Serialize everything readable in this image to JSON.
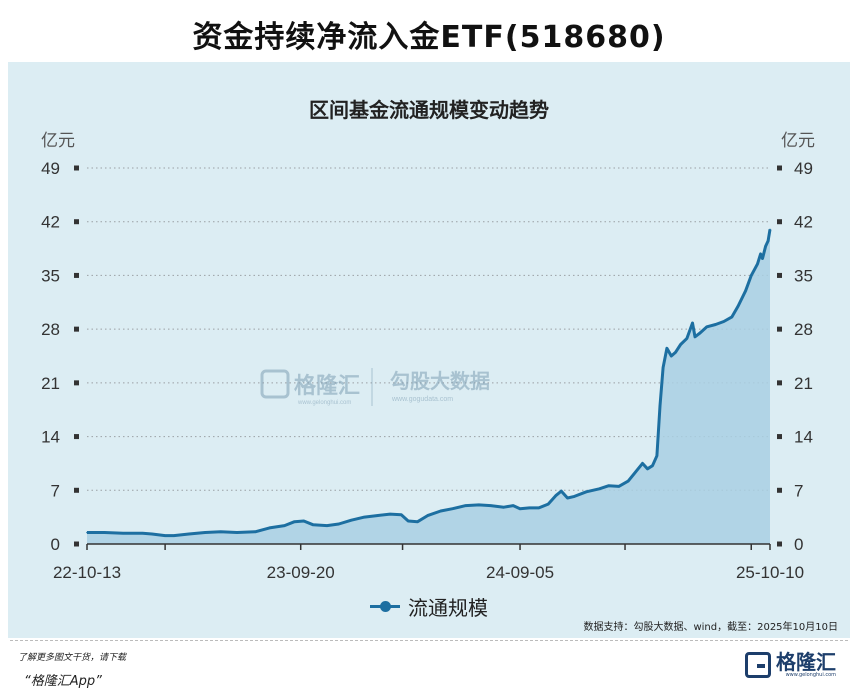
{
  "header": {
    "title": "资金持续净流入金ETF(518680)"
  },
  "watermark": {
    "brand": "格隆汇",
    "brand_url": "www.gelonghui.com",
    "sub_brand": "勾股大数据",
    "sub_url": "www.gogudata.com"
  },
  "chart_data": {
    "type": "area",
    "title": "区间基金流通规模变动趋势",
    "ylabel_left": "亿元",
    "ylabel_right": "亿元",
    "yticks": [
      0,
      7,
      14,
      21,
      28,
      35,
      42,
      49
    ],
    "ylim": [
      0,
      49
    ],
    "xlim": [
      "2022-10-13",
      "2025-10-10"
    ],
    "xticks": [
      {
        "date": "2022-10-13",
        "label": "22-10-13"
      },
      {
        "date": "2023-09-20",
        "label": "23-09-20"
      },
      {
        "date": "2024-09-05",
        "label": "24-09-05"
      },
      {
        "date": "2025-10-10",
        "label": "25-10-10"
      }
    ],
    "minor_xticks": [
      "2023-02-15",
      "2024-03-01",
      "2025-02-20",
      "2025-09-10"
    ],
    "grid": true,
    "legend_position": "bottom",
    "colors": {
      "line": "#1d6fa1",
      "area": "#a9cfe3",
      "background": "#dcedf3"
    },
    "series": [
      {
        "name": "流通规模",
        "points": [
          [
            "2022-10-13",
            1.5
          ],
          [
            "2022-11-10",
            1.5
          ],
          [
            "2022-12-10",
            1.4
          ],
          [
            "2023-01-10",
            1.4
          ],
          [
            "2023-01-25",
            1.3
          ],
          [
            "2023-02-15",
            1.1
          ],
          [
            "2023-03-01",
            1.1
          ],
          [
            "2023-03-25",
            1.3
          ],
          [
            "2023-04-20",
            1.5
          ],
          [
            "2023-05-15",
            1.6
          ],
          [
            "2023-06-10",
            1.5
          ],
          [
            "2023-07-10",
            1.6
          ],
          [
            "2023-08-01",
            2.1
          ],
          [
            "2023-08-25",
            2.4
          ],
          [
            "2023-09-10",
            2.9
          ],
          [
            "2023-09-25",
            3.0
          ],
          [
            "2023-10-10",
            2.5
          ],
          [
            "2023-11-01",
            2.4
          ],
          [
            "2023-11-20",
            2.6
          ],
          [
            "2023-12-10",
            3.1
          ],
          [
            "2023-12-31",
            3.5
          ],
          [
            "2024-01-20",
            3.7
          ],
          [
            "2024-02-10",
            3.9
          ],
          [
            "2024-02-28",
            3.8
          ],
          [
            "2024-03-10",
            3.0
          ],
          [
            "2024-03-25",
            2.9
          ],
          [
            "2024-04-10",
            3.7
          ],
          [
            "2024-05-01",
            4.3
          ],
          [
            "2024-05-20",
            4.6
          ],
          [
            "2024-06-10",
            5.0
          ],
          [
            "2024-07-01",
            5.1
          ],
          [
            "2024-07-20",
            5.0
          ],
          [
            "2024-08-10",
            4.8
          ],
          [
            "2024-08-25",
            5.0
          ],
          [
            "2024-09-05",
            4.6
          ],
          [
            "2024-09-20",
            4.7
          ],
          [
            "2024-10-05",
            4.7
          ],
          [
            "2024-10-20",
            5.2
          ],
          [
            "2024-11-01",
            6.3
          ],
          [
            "2024-11-10",
            6.9
          ],
          [
            "2024-11-20",
            6.0
          ],
          [
            "2024-12-01",
            6.2
          ],
          [
            "2024-12-20",
            6.8
          ],
          [
            "2025-01-10",
            7.2
          ],
          [
            "2025-01-25",
            7.6
          ],
          [
            "2025-02-10",
            7.5
          ],
          [
            "2025-02-25",
            8.2
          ],
          [
            "2025-03-10",
            9.5
          ],
          [
            "2025-03-20",
            10.5
          ],
          [
            "2025-03-28",
            9.8
          ],
          [
            "2025-04-05",
            10.2
          ],
          [
            "2025-04-12",
            11.5
          ],
          [
            "2025-04-17",
            18.0
          ],
          [
            "2025-04-22",
            23.0
          ],
          [
            "2025-04-28",
            25.5
          ],
          [
            "2025-05-05",
            24.5
          ],
          [
            "2025-05-12",
            25.0
          ],
          [
            "2025-05-20",
            26.0
          ],
          [
            "2025-05-30",
            26.8
          ],
          [
            "2025-06-08",
            28.8
          ],
          [
            "2025-06-12",
            27.0
          ],
          [
            "2025-06-20",
            27.5
          ],
          [
            "2025-07-01",
            28.3
          ],
          [
            "2025-07-15",
            28.6
          ],
          [
            "2025-07-28",
            29.0
          ],
          [
            "2025-08-10",
            29.6
          ],
          [
            "2025-08-20",
            31.0
          ],
          [
            "2025-09-01",
            33.0
          ],
          [
            "2025-09-10",
            35.0
          ],
          [
            "2025-09-20",
            36.5
          ],
          [
            "2025-09-25",
            37.8
          ],
          [
            "2025-09-28",
            37.2
          ],
          [
            "2025-10-03",
            38.8
          ],
          [
            "2025-10-07",
            39.5
          ],
          [
            "2025-10-10",
            41.0
          ]
        ]
      }
    ],
    "source": "数据支持：勾股大数据、wind，截至：2025年10月10日"
  },
  "footer": {
    "note": "了解更多图文干货，请下载",
    "app": "“格隆汇App”",
    "logo_text": "格隆汇",
    "logo_url": "www.gelonghui.com"
  }
}
